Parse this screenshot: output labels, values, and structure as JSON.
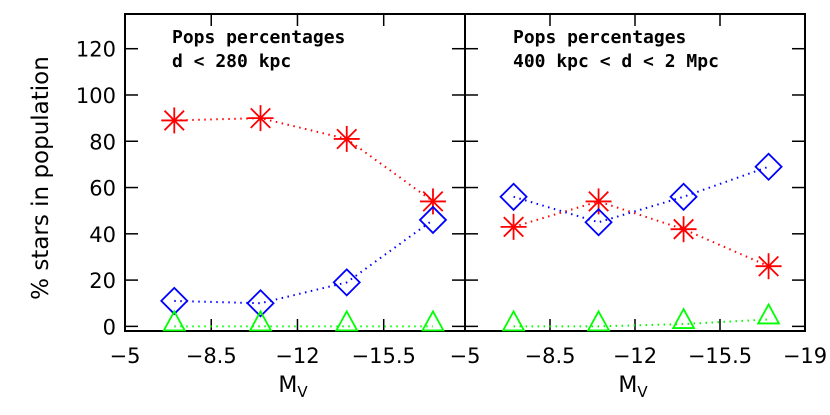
{
  "chart_data": {
    "type": "line",
    "ylabel": "% stars in population",
    "xlabel_main": "M",
    "xlabel_sub": "V",
    "ylim": [
      -2,
      135
    ],
    "yticks": [
      0,
      20,
      40,
      60,
      80,
      100,
      120
    ],
    "ytick_labels": [
      "0",
      "20",
      "40",
      "60",
      "80",
      "100",
      "120"
    ],
    "series_colors": {
      "red": "#ff0000",
      "blue": "#0000ff",
      "green": "#00ff00"
    },
    "series_markers": {
      "red": "asterisk",
      "blue": "diamond",
      "green": "triangle"
    },
    "panels": [
      {
        "title_lines": [
          "Pops percentages",
          "d < 280 kpc"
        ],
        "xlim": [
          -5,
          -18.8
        ],
        "xticks": [
          -5,
          -8.5,
          -12,
          -15.5
        ],
        "xtick_labels": [
          "−5",
          "−8.5",
          "−12",
          "−15.5"
        ],
        "x": [
          -7,
          -10.5,
          -14,
          -17.5
        ],
        "series": [
          {
            "color": "red",
            "values": [
              89,
              90,
              81,
              54
            ]
          },
          {
            "color": "blue",
            "values": [
              11,
              10,
              19,
              46
            ]
          },
          {
            "color": "green",
            "values": [
              0,
              0,
              0,
              0
            ]
          }
        ]
      },
      {
        "title_lines": [
          "Pops percentages",
          "400 kpc < d < 2 Mpc"
        ],
        "xlim": [
          -5,
          -19
        ],
        "xticks": [
          -5,
          -8.5,
          -12,
          -15.5,
          -19
        ],
        "xtick_labels": [
          "−5",
          "−8.5",
          "−12",
          "−15.5",
          "−19"
        ],
        "x": [
          -7,
          -10.5,
          -14,
          -17.5
        ],
        "series": [
          {
            "color": "red",
            "values": [
              43,
              54,
              42,
              26
            ]
          },
          {
            "color": "blue",
            "values": [
              56,
              45,
              56,
              69
            ]
          },
          {
            "color": "green",
            "values": [
              0,
              0,
              1,
              3
            ]
          }
        ]
      }
    ]
  }
}
